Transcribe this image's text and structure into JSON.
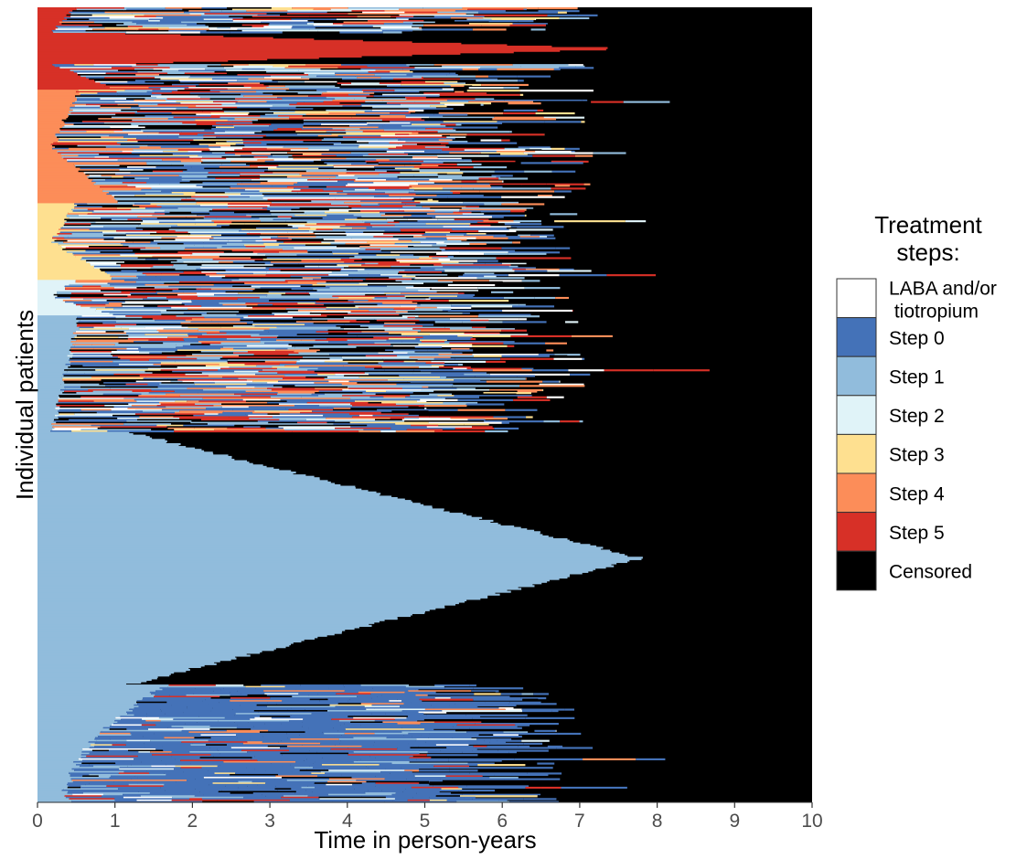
{
  "chart_data": {
    "type": "area",
    "description_axes": "sequence index plot",
    "xlabel": "Time in person-years",
    "ylabel": "Individual patients",
    "xlim": [
      0,
      10
    ],
    "xticks": [
      0,
      1,
      2,
      3,
      4,
      5,
      6,
      7,
      8,
      9,
      10
    ],
    "xtick_labels": [
      "0",
      "1",
      "2",
      "3",
      "4",
      "5",
      "6",
      "7",
      "8",
      "9",
      "10"
    ],
    "grid": false,
    "legend_position": "right",
    "legend": {
      "title_lines": [
        "Treatment",
        "steps:"
      ],
      "entries": [
        {
          "key": "laba",
          "lines": [
            "LABA and/or",
            " tiotropium"
          ],
          "color": "#ffffff"
        },
        {
          "key": "s0",
          "lines": [
            "Step 0"
          ],
          "color": "#4472b8"
        },
        {
          "key": "s1",
          "lines": [
            "Step 1"
          ],
          "color": "#91bcdc"
        },
        {
          "key": "s2",
          "lines": [
            "Step 2"
          ],
          "color": "#e0f3f8"
        },
        {
          "key": "s3",
          "lines": [
            "Step 3"
          ],
          "color": "#fee090"
        },
        {
          "key": "s4",
          "lines": [
            "Step 4"
          ],
          "color": "#fc8d59"
        },
        {
          "key": "s5",
          "lines": [
            "Step 5"
          ],
          "color": "#d73027"
        },
        {
          "key": "cens",
          "lines": [
            "Censored"
          ],
          "color": "#000000"
        }
      ]
    },
    "groups": [
      {
        "start_step": "Step 5",
        "color_key": "s5",
        "share": 0.104,
        "initial_max": 0.3,
        "stable_fraction": 0.38,
        "stable_max_end": 7.6
      },
      {
        "start_step": "Step 4",
        "color_key": "s4",
        "share": 0.142,
        "initial_max": 0.35,
        "stable_fraction": 0.0,
        "stable_max_end": 0
      },
      {
        "start_step": "Step 3",
        "color_key": "s3",
        "share": 0.096,
        "initial_max": 0.3,
        "stable_fraction": 0.0,
        "stable_max_end": 0
      },
      {
        "start_step": "Step 2",
        "color_key": "s2",
        "share": 0.045,
        "initial_max": 0.3,
        "stable_fraction": 0.0,
        "stable_max_end": 0
      },
      {
        "start_step": "Step 1",
        "color_key": "s1",
        "share": 0.613,
        "initial_max": 0.35,
        "stable_fraction": 0.52,
        "stable_max_end": 7.8
      }
    ]
  }
}
